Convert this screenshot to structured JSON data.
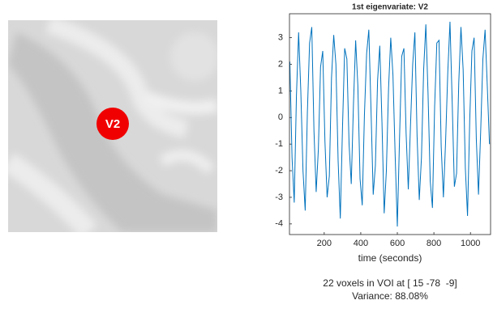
{
  "image": {
    "label": "V2"
  },
  "chart_data": {
    "type": "line",
    "title": "1st eigenvariate: V2",
    "x_label": "time (seconds)",
    "x": [
      12,
      24,
      36,
      48,
      60,
      72,
      84,
      96,
      108,
      120,
      132,
      144,
      156,
      168,
      180,
      192,
      204,
      216,
      228,
      240,
      252,
      264,
      276,
      288,
      300,
      312,
      324,
      336,
      348,
      360,
      372,
      384,
      396,
      408,
      420,
      432,
      444,
      456,
      468,
      480,
      492,
      504,
      516,
      528,
      540,
      552,
      564,
      576,
      588,
      600,
      612,
      624,
      636,
      648,
      660,
      672,
      684,
      696,
      708,
      720,
      732,
      744,
      756,
      768,
      780,
      792,
      804,
      816,
      828,
      840,
      852,
      864,
      876,
      888,
      900,
      912,
      924,
      936,
      948,
      960,
      972,
      984,
      996,
      1008,
      1020,
      1032,
      1044,
      1056,
      1068,
      1080,
      1092,
      1104
    ],
    "series": [
      {
        "color": "#0072bd",
        "values": [
          2.1,
          -1.5,
          -3.2,
          0.8,
          3.2,
          1.0,
          -2.0,
          -3.5,
          0.2,
          2.8,
          3.4,
          -0.5,
          -2.8,
          -1.2,
          1.9,
          2.5,
          -0.9,
          -3.0,
          -2.2,
          1.5,
          3.1,
          2.0,
          -1.6,
          -3.8,
          -0.4,
          2.6,
          2.2,
          -1.0,
          -2.5,
          0.5,
          2.9,
          1.2,
          -2.3,
          -3.3,
          0.1,
          2.4,
          3.3,
          0.3,
          -2.9,
          -1.8,
          1.4,
          2.7,
          -0.2,
          -3.6,
          -2.0,
          1.1,
          3.0,
          1.6,
          -1.4,
          -4.1,
          -0.8,
          2.3,
          2.6,
          -0.6,
          -2.7,
          -0.3,
          2.0,
          3.2,
          -0.7,
          -3.1,
          -1.5,
          1.8,
          3.5,
          0.9,
          -2.4,
          -3.4,
          0.4,
          2.8,
          2.9,
          -1.1,
          -3.0,
          -0.9,
          1.7,
          3.6,
          0.6,
          -2.6,
          -2.1,
          1.3,
          3.4,
          1.8,
          -1.9,
          -3.7,
          -0.1,
          2.5,
          3.0,
          -0.8,
          -2.9,
          -0.5,
          2.2,
          3.3,
          1.2,
          -1.0
        ]
      }
    ],
    "xlim": [
      10,
      1110
    ],
    "xticks": [
      200,
      400,
      600,
      800,
      1000
    ],
    "ylim": [
      -4.4,
      3.9
    ],
    "yticks": [
      -4,
      -3,
      -2,
      -1,
      0,
      1,
      2,
      3
    ],
    "grid": false
  },
  "voi_info": [
    "22 voxels in VOI at [ 15 -78  -9]",
    "Variance: 88.08%"
  ]
}
